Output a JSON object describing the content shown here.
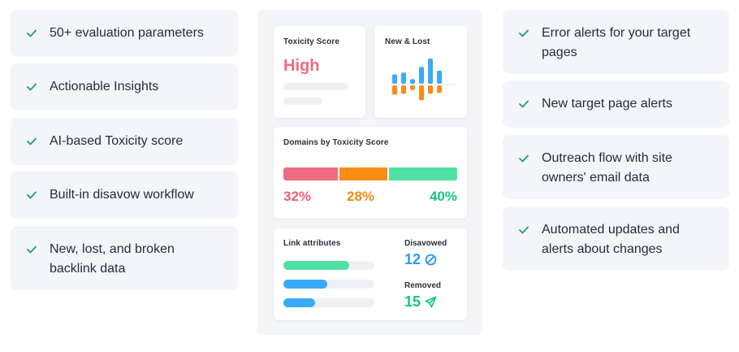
{
  "left_features": [
    {
      "text": "50+ evaluation parameters"
    },
    {
      "text": "Actionable Insights"
    },
    {
      "text": "AI-based Toxicity score"
    },
    {
      "text": "Built-in disavow workflow"
    },
    {
      "text": "New, lost, and broken backlink data"
    }
  ],
  "right_features": [
    {
      "text": "Error alerts for your target pages"
    },
    {
      "text": "New target page alerts"
    },
    {
      "text": "Outreach flow with site owners' email data"
    },
    {
      "text": "Automated updates and alerts about changes"
    }
  ],
  "icons": {
    "check": "check-icon",
    "disavowed": "prohibited-icon",
    "removed": "paper-plane-icon"
  },
  "colors": {
    "check": "#1c9f6f",
    "toxic_red": "#ef6b80",
    "orange": "#fb8c15",
    "green": "#4fe0a3",
    "green_text": "#16c48b",
    "blue": "#3aaafa",
    "blue_text": "#2b9ef0",
    "pct_red": "#ec5f7a",
    "pct_orange": "#f28a12"
  },
  "toxicity_card": {
    "title": "Toxicity Score",
    "value": "High"
  },
  "new_lost_card": {
    "title": "New & Lost",
    "chart_data": {
      "type": "bar",
      "series": [
        {
          "values": [
            10,
            12,
            5,
            18,
            27,
            14
          ]
        },
        {
          "values": [
            -10,
            -9,
            -5,
            -16,
            -9,
            -8
          ]
        }
      ]
    }
  },
  "domains_card": {
    "title": "Domains by Toxicity Score",
    "segments": [
      {
        "label": "32%",
        "value": 32
      },
      {
        "label": "28%",
        "value": 28
      },
      {
        "label": "40%",
        "value": 40
      }
    ]
  },
  "link_card": {
    "title": "Link attributes",
    "bars": [
      {
        "value": 0.72
      },
      {
        "value": 0.48
      },
      {
        "value": 0.35
      }
    ],
    "disavowed_label": "Disavowed",
    "disavowed_value": "12",
    "removed_label": "Removed",
    "removed_value": "15"
  }
}
